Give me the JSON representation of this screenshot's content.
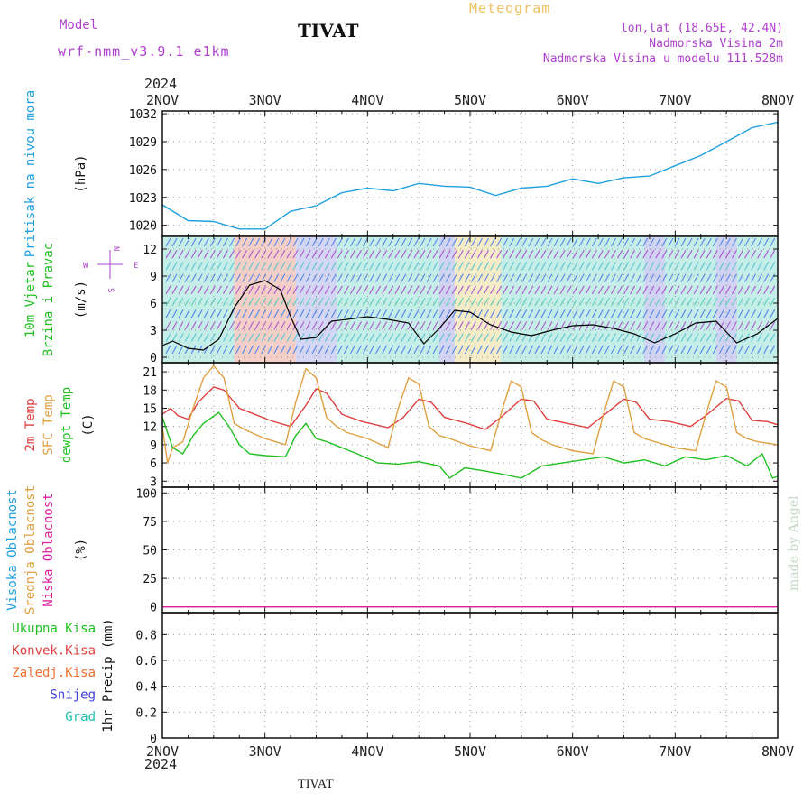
{
  "header": {
    "model_label": "Model",
    "model_name": "wrf-nmm_v3.9.1  e1km",
    "station": "TIVAT",
    "meteogram": "Meteogram",
    "location": "lon,lat (18.65E, 42.4N)",
    "elevation": "Nadmorska Visina 2m",
    "model_elevation": "Nadmorska Visina u modelu 111.528m"
  },
  "footer": {
    "station": "TIVAT",
    "watermark": "made by Angel"
  },
  "time_axis": {
    "year": "2024",
    "ticks": [
      "2NOV",
      "3NOV",
      "4NOV",
      "5NOV",
      "6NOV",
      "7NOV",
      "8NOV"
    ]
  },
  "chart_data": [
    {
      "type": "line",
      "panel": "pressure",
      "ylabels": [
        "Pritisak na nivou mora"
      ],
      "unit": "(hPa)",
      "yticks": [
        1020,
        1023,
        1026,
        1029,
        1032
      ],
      "ylim": [
        1018.8,
        1032.3
      ],
      "series": [
        {
          "name": "Pritisak na nivou mora",
          "color": "#1ea0e0",
          "x": [
            0,
            0.25,
            0.5,
            0.75,
            1,
            1.25,
            1.5,
            1.75,
            2,
            2.25,
            2.5,
            2.75,
            3,
            3.25,
            3.5,
            3.75,
            4,
            4.25,
            4.5,
            4.75,
            5,
            5.25,
            5.5,
            5.75,
            6
          ],
          "y": [
            1022.2,
            1020.5,
            1020.4,
            1019.6,
            1019.6,
            1021.5,
            1022.1,
            1023.5,
            1024.0,
            1023.7,
            1024.5,
            1024.2,
            1024.1,
            1023.2,
            1024.0,
            1024.2,
            1025.0,
            1024.5,
            1025.1,
            1025.3,
            1026.4,
            1027.5,
            1029.0,
            1030.5,
            1031.1
          ]
        }
      ],
      "grid": true
    },
    {
      "type": "line",
      "panel": "wind",
      "ylabels": [
        "10m Vjetar",
        "Brzina i Pravac"
      ],
      "unit": "(m/s)",
      "compass": {
        "n": "N",
        "s": "S",
        "w": "W",
        "e": "E"
      },
      "yticks": [
        0,
        3,
        6,
        9,
        12
      ],
      "ylim": [
        -0.6,
        13.4
      ],
      "series": [
        {
          "name": "Brzina",
          "color": "#000000",
          "x": [
            0,
            0.1,
            0.25,
            0.4,
            0.55,
            0.7,
            0.85,
            1,
            1.15,
            1.25,
            1.35,
            1.5,
            1.65,
            1.8,
            2,
            2.2,
            2.4,
            2.55,
            2.7,
            2.85,
            3,
            3.2,
            3.4,
            3.6,
            3.8,
            4,
            4.2,
            4.4,
            4.6,
            4.8,
            5,
            5.2,
            5.4,
            5.6,
            5.8,
            6
          ],
          "y": [
            1.3,
            1.8,
            1.0,
            0.8,
            2.0,
            5.5,
            8.0,
            8.5,
            7.5,
            4.5,
            2.0,
            2.2,
            4.0,
            4.2,
            4.5,
            4.2,
            3.8,
            1.5,
            3.2,
            5.2,
            5.0,
            3.6,
            2.8,
            2.4,
            3.0,
            3.5,
            3.6,
            3.2,
            2.6,
            1.6,
            2.6,
            3.8,
            4.0,
            1.6,
            2.6,
            4.3
          ]
        }
      ],
      "grid": true
    },
    {
      "type": "line",
      "panel": "temperature",
      "ylabels": [
        "2m Temp",
        "SFC Temp",
        "dewpt Temp"
      ],
      "unit": "(C)",
      "yticks": [
        3,
        6,
        9,
        12,
        15,
        18,
        21
      ],
      "ylim": [
        2.0,
        22.5
      ],
      "series": [
        {
          "name": "2m Temp",
          "color": "#e04040",
          "x": [
            0,
            0.08,
            0.15,
            0.25,
            0.35,
            0.5,
            0.6,
            0.75,
            0.9,
            1.05,
            1.25,
            1.4,
            1.5,
            1.6,
            1.75,
            1.95,
            2.2,
            2.35,
            2.5,
            2.62,
            2.75,
            2.95,
            3.15,
            3.3,
            3.5,
            3.62,
            3.75,
            3.95,
            4.15,
            4.3,
            4.5,
            4.62,
            4.75,
            4.95,
            5.15,
            5.3,
            5.5,
            5.62,
            5.75,
            5.9,
            6
          ],
          "y": [
            14.0,
            15.0,
            13.8,
            13.2,
            16.0,
            18.5,
            18.0,
            15.0,
            14.0,
            13.0,
            12.0,
            15.5,
            18.2,
            17.5,
            14.0,
            12.8,
            11.8,
            13.5,
            16.5,
            16.0,
            13.5,
            12.6,
            11.5,
            13.5,
            16.5,
            16.2,
            13.2,
            12.5,
            11.8,
            13.8,
            16.5,
            16.0,
            13.2,
            12.8,
            12.0,
            13.8,
            16.6,
            16.2,
            13.0,
            12.8,
            12.3
          ]
        },
        {
          "name": "SFC Temp",
          "color": "#e0a040",
          "x": [
            0,
            0.05,
            0.1,
            0.2,
            0.3,
            0.4,
            0.5,
            0.6,
            0.7,
            0.8,
            1.0,
            1.2,
            1.3,
            1.4,
            1.5,
            1.6,
            1.7,
            1.8,
            2.0,
            2.2,
            2.3,
            2.4,
            2.5,
            2.6,
            2.7,
            2.8,
            3.0,
            3.2,
            3.3,
            3.4,
            3.5,
            3.6,
            3.7,
            3.8,
            4.0,
            4.2,
            4.3,
            4.4,
            4.5,
            4.6,
            4.7,
            4.8,
            5.0,
            5.2,
            5.3,
            5.4,
            5.5,
            5.6,
            5.7,
            5.8,
            6.0
          ],
          "y": [
            12.0,
            6.0,
            8.5,
            9.5,
            15.0,
            20.0,
            22.0,
            20.0,
            12.5,
            11.5,
            10.0,
            9.0,
            16.0,
            21.5,
            20.0,
            13.5,
            12.0,
            11.0,
            10.0,
            8.5,
            15.0,
            20.0,
            19.0,
            12.0,
            10.5,
            10.0,
            8.8,
            8.0,
            14.0,
            19.5,
            18.5,
            11.0,
            9.8,
            9.0,
            8.0,
            7.5,
            14.0,
            19.5,
            18.5,
            11.0,
            10.0,
            9.5,
            8.5,
            8.0,
            14.0,
            19.5,
            18.5,
            11.0,
            10.0,
            9.5,
            9.0
          ]
        },
        {
          "name": "dewpt Temp",
          "color": "#20c020",
          "x": [
            0,
            0.1,
            0.2,
            0.3,
            0.4,
            0.55,
            0.65,
            0.75,
            0.85,
            1.0,
            1.2,
            1.3,
            1.4,
            1.5,
            1.6,
            1.75,
            1.9,
            2.1,
            2.3,
            2.5,
            2.7,
            2.8,
            2.95,
            3.1,
            3.3,
            3.5,
            3.7,
            3.9,
            4.1,
            4.3,
            4.5,
            4.7,
            4.9,
            5.1,
            5.3,
            5.5,
            5.7,
            5.85,
            5.95,
            6.0
          ],
          "y": [
            13.5,
            8.5,
            7.5,
            10.5,
            12.5,
            14.3,
            12.0,
            9.0,
            7.5,
            7.2,
            7.0,
            10.5,
            12.5,
            10.0,
            9.5,
            8.5,
            7.5,
            6.0,
            5.8,
            6.2,
            5.5,
            3.5,
            5.2,
            4.8,
            4.2,
            3.5,
            5.5,
            6.0,
            6.5,
            7.0,
            6.0,
            6.5,
            5.5,
            7.0,
            6.5,
            7.2,
            5.5,
            7.5,
            3.5,
            3.8
          ]
        }
      ],
      "grid": true
    },
    {
      "type": "line",
      "panel": "cloud",
      "ylabels": [
        "Visoka Oblacnost",
        "Srednja Oblacnost",
        "Niska Oblacnost"
      ],
      "unit": "(%)",
      "yticks": [
        0,
        25,
        50,
        75,
        100
      ],
      "ylim": [
        -5,
        105
      ],
      "series": [
        {
          "name": "Visoka Oblacnost",
          "color": "#1ea0e0",
          "x": [
            0,
            6
          ],
          "y": [
            0,
            0
          ]
        },
        {
          "name": "Srednja Oblacnost",
          "color": "#e0a040",
          "x": [
            0,
            6
          ],
          "y": [
            0,
            0
          ]
        },
        {
          "name": "Niska Oblacnost",
          "color": "#e020a0",
          "x": [
            0,
            6
          ],
          "y": [
            0,
            0
          ]
        }
      ],
      "grid": true
    },
    {
      "type": "bar",
      "panel": "precip",
      "ylabels": [
        "Ukupna Kisa",
        "Konvek.Kisa",
        "Zaledj.Kisa",
        "Snijeg",
        "Grad"
      ],
      "label_colors": [
        "#20c020",
        "#e04040",
        "#f07030",
        "#4040e0",
        "#20c0b0"
      ],
      "unit": "1hr Precip (mm)",
      "yticks": [
        0,
        0.2,
        0.4,
        0.6,
        0.8
      ],
      "ylim": [
        0,
        0.97
      ],
      "values": [],
      "grid": true
    }
  ]
}
